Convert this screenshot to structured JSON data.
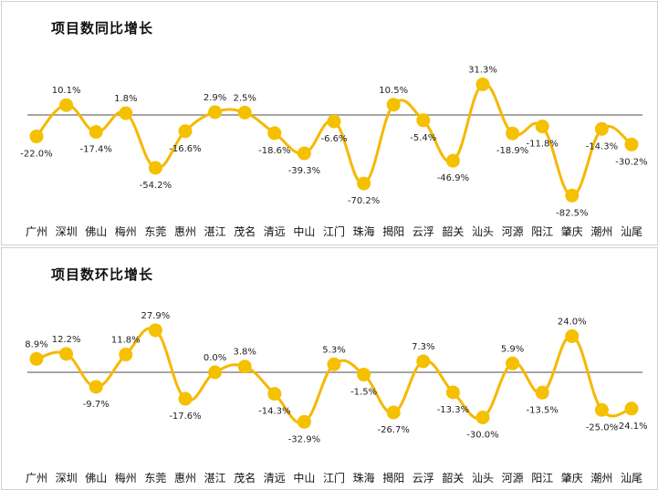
{
  "colors": {
    "line": "#f5b800",
    "marker": "#f5c000",
    "baseline": "#a6a6a6"
  },
  "chart_data": [
    {
      "type": "line",
      "title": "项目数同比增长",
      "categories": [
        "广州",
        "深圳",
        "佛山",
        "梅州",
        "东莞",
        "惠州",
        "湛江",
        "茂名",
        "清远",
        "中山",
        "江门",
        "珠海",
        "揭阳",
        "云浮",
        "韶关",
        "汕头",
        "河源",
        "阳江",
        "肇庆",
        "潮州",
        "汕尾"
      ],
      "values": [
        -22.0,
        10.1,
        -17.4,
        1.8,
        -54.2,
        -16.6,
        2.9,
        2.5,
        -18.6,
        -39.3,
        -6.6,
        -70.2,
        10.5,
        -5.4,
        -46.9,
        31.3,
        -18.9,
        -11.8,
        -82.5,
        -14.3,
        -30.2
      ],
      "labels": [
        "-22.0%",
        "10.1%",
        "-17.4%",
        "1.8%",
        "-54.2%",
        "-16.6%",
        "2.9%",
        "2.5%",
        "-18.6%",
        "-39.3%",
        "-6.6%",
        "-70.2%",
        "10.5%",
        "-5.4%",
        "-46.9%",
        "31.3%",
        "-18.9%",
        "-11.8%",
        "-82.5%",
        "-14.3%",
        "-30.2%"
      ],
      "unit": "%",
      "ylim": [
        -90,
        40
      ],
      "smooth": true,
      "grid": false,
      "legend": "none"
    },
    {
      "type": "line",
      "title": "项目数环比增长",
      "categories": [
        "广州",
        "深圳",
        "佛山",
        "梅州",
        "东莞",
        "惠州",
        "湛江",
        "茂名",
        "清远",
        "中山",
        "江门",
        "珠海",
        "揭阳",
        "云浮",
        "韶关",
        "汕头",
        "河源",
        "阳江",
        "肇庆",
        "潮州",
        "汕尾"
      ],
      "values": [
        8.9,
        12.2,
        -9.7,
        11.8,
        27.9,
        -17.6,
        0.0,
        3.8,
        -14.3,
        -32.9,
        5.3,
        -1.5,
        -26.7,
        7.3,
        -13.3,
        -30.0,
        5.9,
        -13.5,
        24.0,
        -25.0,
        -24.1
      ],
      "labels": [
        "8.9%",
        "12.2%",
        "-9.7%",
        "11.8%",
        "27.9%",
        "-17.6%",
        "0.0%",
        "3.8%",
        "-14.3%",
        "-32.9%",
        "5.3%",
        "-1.5%",
        "-26.7%",
        "7.3%",
        "-13.3%",
        "-30.0%",
        "5.9%",
        "-13.5%",
        "24.0%",
        "-25.0%",
        "-24.1%"
      ],
      "unit": "%",
      "ylim": [
        -40,
        35
      ],
      "smooth": true,
      "grid": false,
      "legend": "none"
    }
  ]
}
